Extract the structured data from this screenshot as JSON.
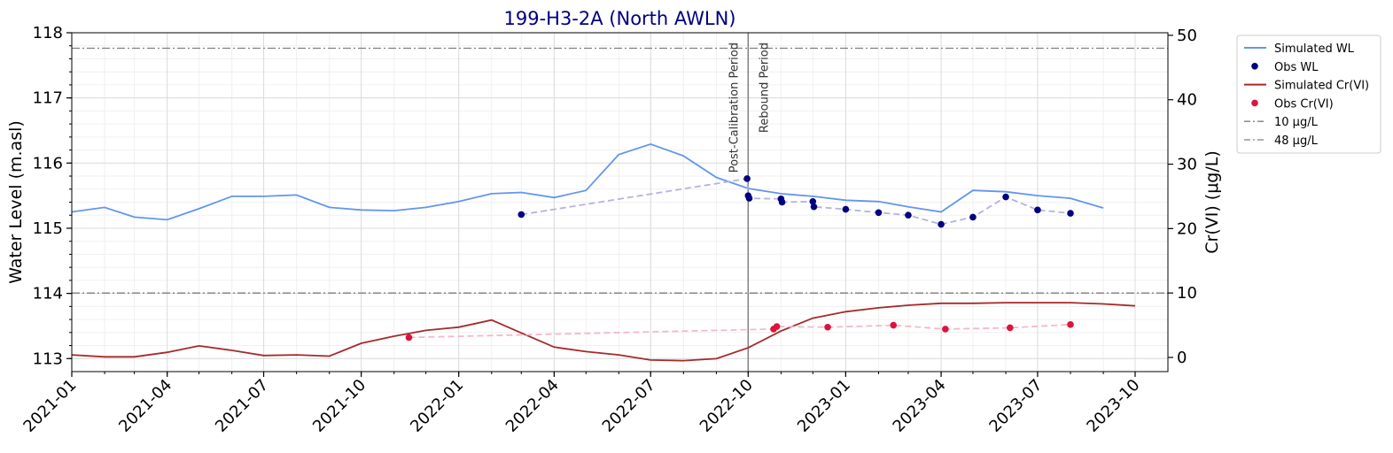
{
  "chart_data": {
    "type": "line",
    "title": "199-H3-2A (North AWLN)",
    "ylabel_left": "Water Level (m.asl)",
    "ylabel_right": "Cr(VI) (μg/L)",
    "xlabel": "",
    "x_range": [
      "2021-01-01",
      "2023-10-01"
    ],
    "ylim_left": [
      112.8,
      118
    ],
    "ylim_right": [
      -2.2,
      50.4
    ],
    "x_ticks": [
      "2021-01",
      "2021-04",
      "2021-07",
      "2021-10",
      "2022-01",
      "2022-04",
      "2022-07",
      "2022-10",
      "2023-01",
      "2023-04",
      "2023-07",
      "2023-10"
    ],
    "y_ticks_left": [
      113,
      114,
      115,
      116,
      117,
      118
    ],
    "y_ticks_right": [
      0,
      10,
      20,
      30,
      40,
      50
    ],
    "grid": true,
    "legend_position": "outside-right",
    "period_divider_date": "2022-10-01",
    "period_labels": [
      "Post-Calibration Period",
      "Rebound Period"
    ],
    "reference_lines": [
      {
        "name": "10 μg/L",
        "value": 10,
        "axis": "right",
        "color": "#7f7f7f"
      },
      {
        "name": "48 μg/L",
        "value": 48,
        "axis": "right",
        "color": "#7f7f7f"
      }
    ],
    "series": [
      {
        "name": "Simulated WL",
        "kind": "line",
        "axis": "left",
        "color": "#6495ed",
        "x": [
          "2021-01-01",
          "2021-02-01",
          "2021-03-01",
          "2021-04-01",
          "2021-05-01",
          "2021-06-01",
          "2021-07-01",
          "2021-08-01",
          "2021-09-01",
          "2021-10-01",
          "2021-11-01",
          "2021-12-01",
          "2022-01-01",
          "2022-02-01",
          "2022-03-01",
          "2022-04-01",
          "2022-05-01",
          "2022-06-01",
          "2022-07-01",
          "2022-08-01",
          "2022-09-01",
          "2022-10-01",
          "2022-11-01",
          "2022-12-01",
          "2023-01-01",
          "2023-02-01",
          "2023-03-01",
          "2023-04-01",
          "2023-05-01",
          "2023-06-01",
          "2023-07-01",
          "2023-08-01",
          "2023-09-01"
        ],
        "y": [
          115.25,
          115.32,
          115.17,
          115.13,
          115.3,
          115.49,
          115.49,
          115.51,
          115.32,
          115.28,
          115.27,
          115.32,
          115.41,
          115.53,
          115.55,
          115.47,
          115.58,
          116.13,
          116.29,
          116.11,
          115.78,
          115.61,
          115.53,
          115.49,
          115.43,
          115.41,
          115.33,
          115.25,
          115.58,
          115.56,
          115.5,
          115.46,
          115.31
        ]
      },
      {
        "name": "Obs WL",
        "kind": "scatter",
        "axis": "left",
        "color": "#000080",
        "line_color": "#b4b4dc",
        "x": [
          "2022-03-01",
          "2022-09-30",
          "2022-10-01",
          "2022-10-02",
          "2022-11-01",
          "2022-11-02",
          "2022-12-01",
          "2022-12-02",
          "2023-01-01",
          "2023-02-01",
          "2023-03-01",
          "2023-04-01",
          "2023-05-01",
          "2023-06-01",
          "2023-07-01",
          "2023-08-01"
        ],
        "y": [
          115.21,
          115.76,
          115.5,
          115.46,
          115.45,
          115.4,
          115.41,
          115.33,
          115.29,
          115.24,
          115.2,
          115.06,
          115.17,
          115.48,
          115.28,
          115.23
        ]
      },
      {
        "name": "Simulated Cr(VI)",
        "kind": "line",
        "axis": "right",
        "color": "#a52a2a",
        "x": [
          "2021-01-01",
          "2021-02-01",
          "2021-03-01",
          "2021-04-01",
          "2021-05-01",
          "2021-06-01",
          "2021-07-01",
          "2021-08-01",
          "2021-09-01",
          "2021-10-01",
          "2021-11-01",
          "2021-12-01",
          "2022-01-01",
          "2022-02-01",
          "2022-03-01",
          "2022-04-01",
          "2022-05-01",
          "2022-06-01",
          "2022-07-01",
          "2022-08-01",
          "2022-09-01",
          "2022-10-01",
          "2022-11-01",
          "2022-12-01",
          "2023-01-01",
          "2023-02-01",
          "2023-03-01",
          "2023-04-01",
          "2023-05-01",
          "2023-06-01",
          "2023-07-01",
          "2023-08-01",
          "2023-09-01",
          "2023-10-01"
        ],
        "y": [
          0.4,
          0.1,
          0.1,
          0.8,
          1.8,
          1.1,
          0.3,
          0.4,
          0.2,
          2.2,
          3.3,
          4.2,
          4.7,
          5.8,
          3.8,
          1.6,
          0.9,
          0.4,
          -0.4,
          -0.5,
          -0.2,
          1.5,
          4.1,
          6.1,
          7.1,
          7.7,
          8.1,
          8.4,
          8.4,
          8.5,
          8.5,
          8.5,
          8.3,
          8.0
        ]
      },
      {
        "name": "Obs Cr(VI)",
        "kind": "scatter",
        "axis": "right",
        "color": "#dc143c",
        "line_color": "#f5b8c8",
        "x": [
          "2021-11-15",
          "2022-10-25",
          "2022-10-28",
          "2022-12-15",
          "2023-02-15",
          "2023-04-05",
          "2023-06-05",
          "2023-08-01"
        ],
        "y": [
          3.1,
          4.4,
          4.8,
          4.7,
          5.0,
          4.4,
          4.6,
          5.1
        ]
      }
    ]
  }
}
